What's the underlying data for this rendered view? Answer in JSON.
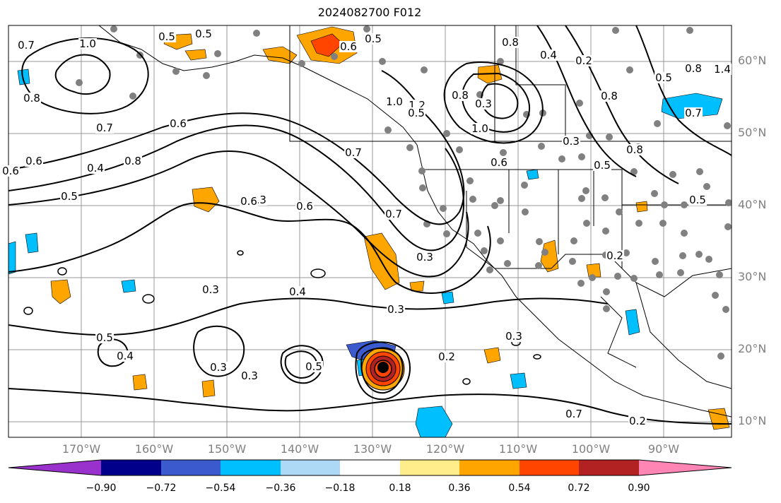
{
  "title": "2024082700 F012",
  "lat_labels": [
    "60°N",
    "50°N",
    "40°N",
    "30°N",
    "20°N",
    "10°N"
  ],
  "lon_labels": [
    "170°W",
    "160°W",
    "150°W",
    "140°W",
    "130°W",
    "120°W",
    "110°W",
    "100°W",
    "90°W"
  ],
  "colorbar": {
    "colors": [
      "#9932cc",
      "#00008b",
      "#3a5acd",
      "#00bfff",
      "#add8f6",
      "#ffffff",
      "#ffec8b",
      "#ffa500",
      "#ff4500",
      "#b22222",
      "#ff85b4"
    ],
    "tick_labels": [
      "−0.90",
      "−0.72",
      "−0.54",
      "−0.36",
      "−0.18",
      "0.18",
      "0.36",
      "0.54",
      "0.72",
      "0.90"
    ]
  },
  "contour_labels": [
    "0.7",
    "1.0",
    "0.5",
    "0.5",
    "0.8",
    "0.6",
    "0.5",
    "0.8",
    "0.4",
    "0.2",
    "0.5",
    "0.8",
    "1.4",
    "0.7",
    "0.6",
    "0.6",
    "0.6",
    "1.0",
    "1.2",
    "0.8",
    "0.3",
    "1.0",
    "0.8",
    "0.7",
    "0.4",
    "0.8",
    "0.5",
    "0.3",
    "0.6",
    "0.7",
    "0.6",
    "0.5",
    "0.8",
    "0.7",
    "0.3",
    "0.5",
    "0.3",
    "0.4",
    "0.5",
    "0.4",
    "0.3",
    "0.3",
    "0.5",
    "0.2",
    "0.3",
    "0.2",
    "0.2",
    "0.3",
    "0.7",
    "0.6",
    "0.3",
    "0.5"
  ]
}
